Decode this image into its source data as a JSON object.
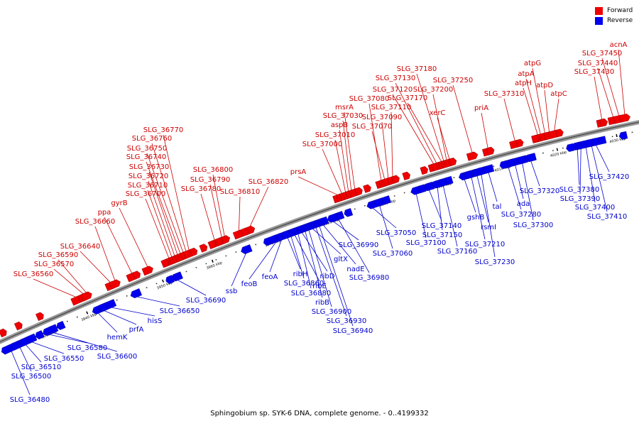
{
  "title": "Sphingobium sp. SYK-6 DNA, complete genome. - 0..4199332",
  "legend": [
    {
      "label": "Forward",
      "color": "#ee0000"
    },
    {
      "label": "Reverse",
      "color": "#0000ee"
    }
  ],
  "colors": {
    "forward": "#ee0000",
    "reverse": "#0000ee",
    "forward_line": "#cc0000",
    "reverse_line": "#0000cc"
  },
  "ticks": [
    "3930 kbp",
    "3940 kbp",
    "3950 kbp",
    "3960 kbp",
    "3970 kbp",
    "3980 kbp",
    "3990 kbp",
    "4000 kbp",
    "4010 kbp",
    "4020 kbp",
    "4030 kbp"
  ],
  "forward_genes": [
    "SLG_36560",
    "SLG_36570",
    "SLG_36590",
    "SLG_36640",
    "SLG_36660",
    "ppa",
    "gyrB",
    "SLG_36700",
    "SLG_36710",
    "SLG_36720",
    "SLG_36730",
    "SLG_36740",
    "SLG_36750",
    "SLG_36760",
    "SLG_36770",
    "SLG_36780",
    "SLG_36790",
    "SLG_36800",
    "SLG_36810",
    "SLG_36820",
    "prsA",
    "SLG_37000",
    "SLG_37010",
    "aspB",
    "SLG_37030",
    "msrA",
    "SLG_37080",
    "SLG_37070",
    "SLG_37090",
    "SLG_37110",
    "SLG_37120",
    "SLG_37130",
    "SLG_37170",
    "SLG_37180",
    "SLG_37200",
    "xerC",
    "SLG_37250",
    "priA",
    "SLG_37310",
    "atpH",
    "atpA",
    "atpG",
    "atpD",
    "atpC",
    "SLG_37430",
    "SLG_37440",
    "SLG_37450",
    "acnA"
  ],
  "reverse_genes": [
    "SLG_36480",
    "SLG_36500",
    "SLG_36510",
    "SLG_36550",
    "SLG_36580",
    "SLG_36600",
    "hemK",
    "prfA",
    "hisS",
    "SLG_36650",
    "SLG_36690",
    "ssb",
    "feoB",
    "feoA",
    "ribH",
    "SLG_36860",
    "ribE",
    "SLG_36880",
    "ribD",
    "ribB",
    "SLG_36900",
    "gltX",
    "SLG_36930",
    "SLG_36940",
    "nadE",
    "SLG_36980",
    "SLG_36990",
    "SLG_37050",
    "SLG_37060",
    "SLG_37100",
    "SLG_37140",
    "SLG_37150",
    "SLG_37160",
    "gshB",
    "SLG_37210",
    "rsmI",
    "SLG_37230",
    "tal",
    "SLG_37280",
    "ada",
    "SLG_37300",
    "SLG_37320",
    "SLG_37380",
    "SLG_37390",
    "SLG_37400",
    "SLG_37410",
    "SLG_37420"
  ]
}
